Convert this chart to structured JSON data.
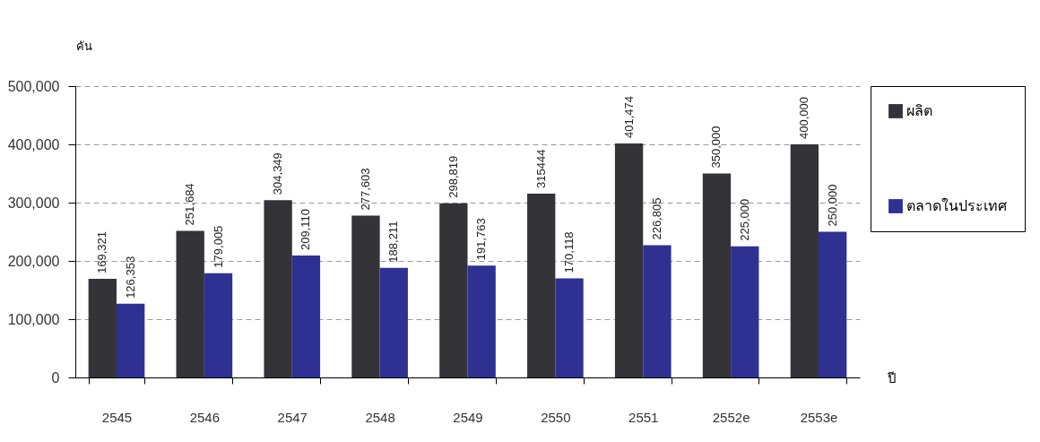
{
  "chart_data": {
    "type": "bar",
    "ylabel": "คัน",
    "xlabel": "ปี",
    "categories": [
      "2545",
      "2546",
      "2547",
      "2548",
      "2549",
      "2550",
      "2551",
      "2552e",
      "2553e"
    ],
    "series": [
      {
        "name": "ผลิต",
        "color": "#333338",
        "values": [
          169321,
          251684,
          304349,
          277603,
          298819,
          315444,
          401474,
          350000,
          400000
        ],
        "value_labels": [
          "169,321",
          "251,684",
          "304,349",
          "277,603",
          "298,819",
          "315444",
          "401,474",
          "350,000",
          "400,000"
        ]
      },
      {
        "name": "ตลาดในประเทศ",
        "color": "#2e3192",
        "values": [
          126353,
          179005,
          209110,
          188211,
          191763,
          170118,
          226805,
          225000,
          250000
        ],
        "value_labels": [
          "126,353",
          "179,005",
          "209,110",
          "188,211",
          "191,763",
          "170,118",
          "226,805",
          "225,000",
          "250,000"
        ]
      }
    ],
    "ylim": [
      0,
      500000
    ],
    "yticks": [
      0,
      {
        "value": 100000,
        "label": "100,000"
      },
      {
        "value": 200000,
        "label": "200,000"
      },
      {
        "value": 300000,
        "label": "300,000"
      },
      {
        "value": 400000,
        "label": "400,000"
      },
      {
        "value": 500000,
        "label": "500,000"
      }
    ],
    "grid": "y",
    "legend": "right"
  }
}
